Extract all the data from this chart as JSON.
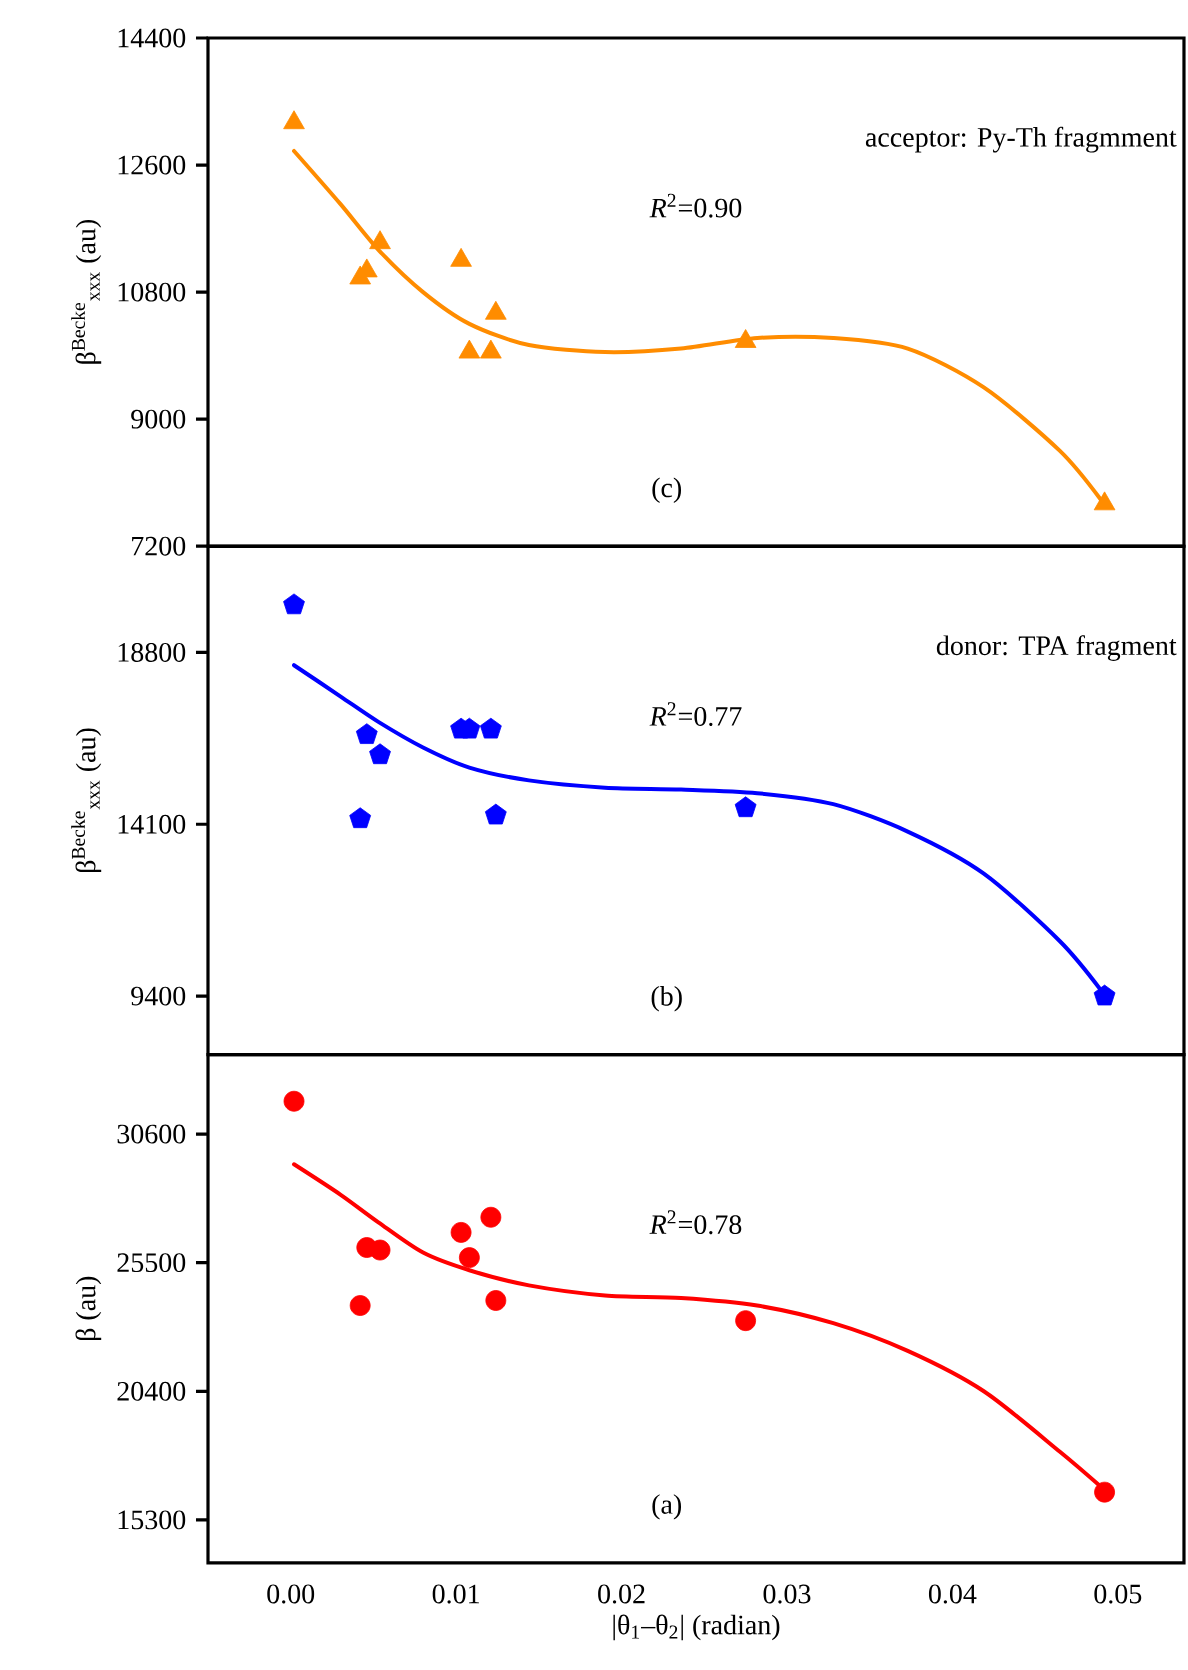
{
  "chart_data": [
    {
      "type": "scatter",
      "ylabel": "β$^{Becke}$$_{xxx}$ (au)",
      "annotations": [
        "acceptor: Py-Th fragmment",
        "*R*$^{2}$=0.90",
        "(c)"
      ],
      "xlim": [
        -0.005,
        0.054
      ],
      "ylim": [
        7200,
        14400
      ],
      "yticks": [
        7200,
        9000,
        10800,
        12600,
        14400
      ],
      "tick_labels": "y",
      "series": [
        {
          "type": "scatter",
          "marker": "triangle",
          "color": "#ff8c00",
          "x": [
            0.0002,
            0.0042,
            0.0046,
            0.0054,
            0.0103,
            0.0108,
            0.0121,
            0.0124,
            0.0275,
            0.0492
          ],
          "values": [
            13200,
            11000,
            11100,
            11500,
            11250,
            9950,
            9950,
            10500,
            10100,
            7800
          ]
        },
        {
          "type": "line",
          "marker": "none",
          "color": "#ff8c00",
          "x": [
            0.0002,
            0.003,
            0.0053,
            0.008,
            0.0108,
            0.0144,
            0.019,
            0.0236,
            0.0282,
            0.0328,
            0.0373,
            0.0419,
            0.0465,
            0.049
          ],
          "values": [
            12800,
            12050,
            11400,
            10800,
            10350,
            10050,
            9950,
            10000,
            10150,
            10150,
            10000,
            9450,
            8550,
            7850
          ]
        }
      ]
    },
    {
      "type": "scatter",
      "ylabel": "β$^{Becke}$$_{xxx}$ (au)",
      "annotations": [
        "donor: TPA fragment",
        "*R*$^{2}$=0.77",
        "(b)"
      ],
      "xlim": [
        -0.005,
        0.054
      ],
      "ylim": [
        7800,
        21700
      ],
      "yticks": [
        9400,
        14100,
        18800
      ],
      "tick_labels": "y",
      "series": [
        {
          "type": "scatter",
          "color": "#0000ff",
          "x": [
            0.0002,
            0.0042,
            0.0046,
            0.0054,
            0.0103,
            0.0108,
            0.0121,
            0.0124,
            0.0275,
            0.0492
          ],
          "values": [
            20100,
            14250,
            16550,
            16000,
            16700,
            16700,
            16700,
            14350,
            14550,
            9400
          ]
        },
        {
          "type": "line",
          "marker": "none",
          "color": "#0000ff",
          "x": [
            0.0002,
            0.003,
            0.0053,
            0.008,
            0.0108,
            0.0144,
            0.019,
            0.0236,
            0.0282,
            0.0328,
            0.0373,
            0.0419,
            0.0465,
            0.049
          ],
          "values": [
            18450,
            17600,
            16900,
            16200,
            15650,
            15300,
            15100,
            15050,
            14950,
            14650,
            13900,
            12750,
            10900,
            9550
          ]
        }
      ]
    },
    {
      "type": "scatter",
      "xlabel": "|θ$_{1}$–θ$_{2}$| (radian)",
      "ylabel": "β (au)",
      "annotations": [
        "*R*$^{2}$=0.78",
        "(a)"
      ],
      "xlim": [
        -0.005,
        0.054
      ],
      "xticks": [
        {
          "value": 0,
          "label": "0.00"
        },
        0.01,
        0.02,
        0.03,
        0.04,
        0.05
      ],
      "ylim": [
        13600,
        33750
      ],
      "yticks": [
        15300,
        20400,
        25500,
        30600
      ],
      "series": [
        {
          "type": "scatter",
          "marker": "circle",
          "color": "#ff0000",
          "x": [
            0.0002,
            0.0042,
            0.0046,
            0.0054,
            0.0103,
            0.0108,
            0.0121,
            0.0124,
            0.0275,
            0.0492
          ],
          "values": [
            31900,
            23800,
            26100,
            26000,
            26700,
            25700,
            27300,
            24000,
            23200,
            16400
          ]
        },
        {
          "type": "line",
          "marker": "none",
          "color": "#ff0000",
          "x": [
            0.0002,
            0.003,
            0.0053,
            0.008,
            0.0108,
            0.0144,
            0.019,
            0.0236,
            0.0282,
            0.0328,
            0.0373,
            0.0419,
            0.0465,
            0.049
          ],
          "values": [
            29400,
            28200,
            27100,
            25900,
            25200,
            24600,
            24200,
            24100,
            23800,
            23100,
            22000,
            20400,
            18000,
            16600
          ]
        }
      ]
    }
  ]
}
